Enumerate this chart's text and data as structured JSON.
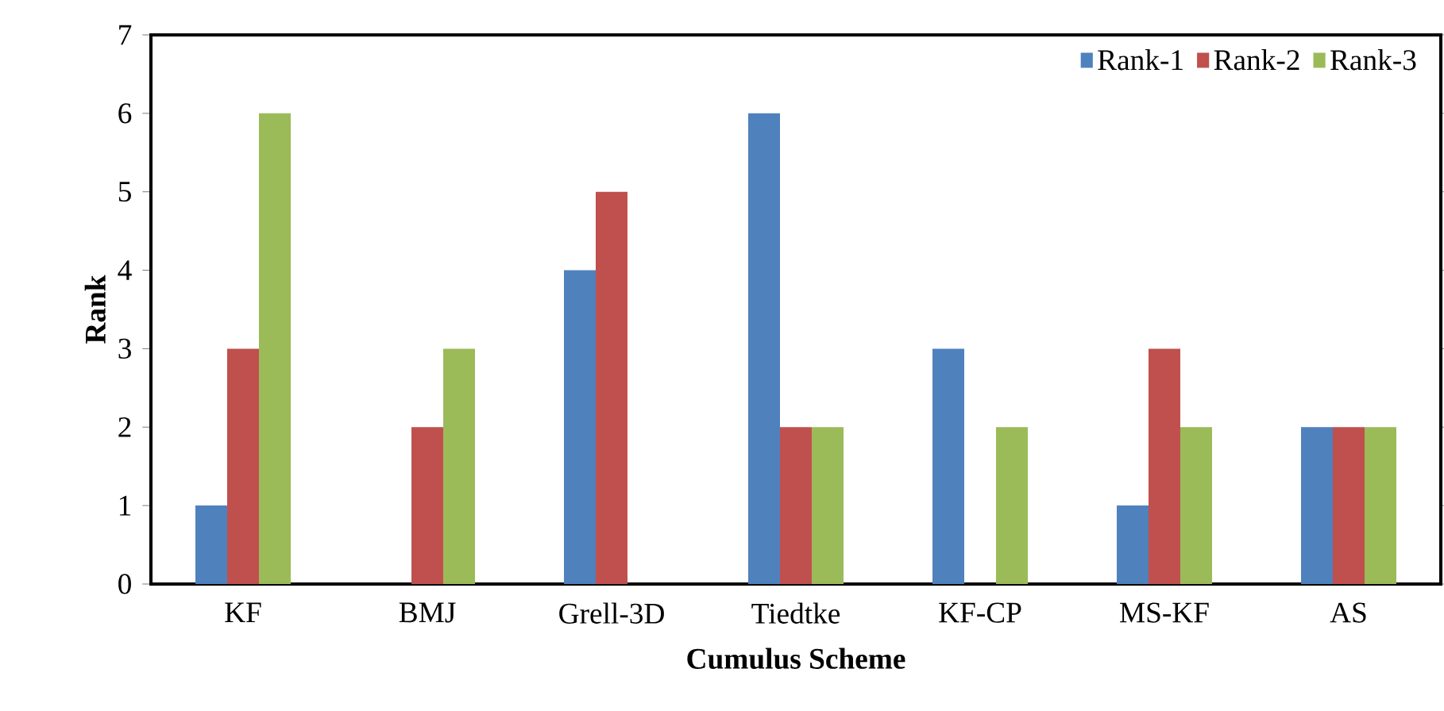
{
  "chart_data": {
    "type": "bar",
    "xlabel": "Cumulus Scheme",
    "ylabel": "Rank",
    "categories": [
      "KF",
      "BMJ",
      "Grell-3D",
      "Tiedtke",
      "KF-CP",
      "MS-KF",
      "AS"
    ],
    "series": [
      {
        "name": "Rank-1",
        "color": "#4f81bd",
        "values": [
          1,
          0,
          4,
          6,
          3,
          1,
          2
        ]
      },
      {
        "name": "Rank-2",
        "color": "#c0504d",
        "values": [
          3,
          2,
          5,
          2,
          0,
          3,
          2
        ]
      },
      {
        "name": "Rank-3",
        "color": "#9bbb59",
        "values": [
          6,
          3,
          0,
          2,
          2,
          2,
          2
        ]
      }
    ],
    "ylim": [
      0,
      7
    ],
    "yticks": [
      0,
      1,
      2,
      3,
      4,
      5,
      6,
      7
    ],
    "legend": "top right",
    "grid": false
  }
}
